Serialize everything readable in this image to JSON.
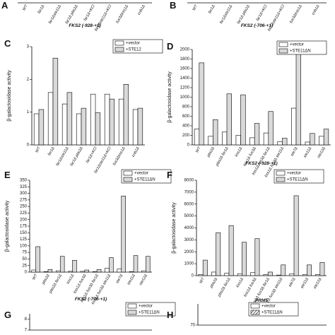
{
  "chart_data": [
    {
      "type": "bar",
      "letter": "A",
      "categories": [
        "WT",
        "far1Δ",
        "far1Δste11Δ",
        "far1Δ pbs2Δ",
        "far1Δ+KCl",
        "far1Δste11Δ+KCl",
        "fus3Δkss1Δ",
        "cnb1Δ"
      ],
      "xlabel": "FKS2 (-928-+1)"
    },
    {
      "type": "bar",
      "letter": "B",
      "categories": [
        "WT",
        "far1Δ",
        "far1Δste11Δ",
        "far1Δ pbs2Δ",
        "far1Δ+KCl",
        "far1Δste11Δ+KCl",
        "fus3Δkss1Δ",
        "cnb1Δ"
      ],
      "xlabel": "FKS2 (-706-+1)"
    },
    {
      "type": "bar",
      "letter": "C",
      "ylabel": "β-galactosidase activity",
      "categories": [
        "WT",
        "far1Δ",
        "far1Δste11Δ",
        "far1Δ pbs2Δ",
        "far1Δ+KCl",
        "far1Δste11Δ+KCl",
        "fus3Δkss1Δ",
        "cnb1Δ"
      ],
      "series": [
        {
          "name": "+vector",
          "color": "#ffffff",
          "values": [
            0.95,
            1.6,
            1.25,
            0.95,
            1.55,
            1.55,
            1.4,
            1.08
          ]
        },
        {
          "name": "+STE12",
          "color": "#d9d9d9",
          "values": [
            1.08,
            2.65,
            1.6,
            1.12,
            0.98,
            1.4,
            1.85,
            1.12
          ]
        }
      ],
      "ylim": [
        0,
        3
      ],
      "yticks": [
        0,
        1,
        2,
        3
      ]
    },
    {
      "type": "bar",
      "letter": "D",
      "ylabel": "β-galactosidase activity",
      "xlabel": "FKS2 (-928-+1)",
      "categories": [
        "WT",
        "pbs2Δ",
        "pbs2Δ far1Δ",
        "kss1Δ",
        "kss1Δ fus3Δ",
        "kss1Δ fus3Δ far1Δ",
        "kss1Δ fus3Δ ste11Δ",
        "ste7Δ",
        "ste11Δ",
        "ste12Δ"
      ],
      "series": [
        {
          "name": "+vector",
          "color": "#ffffff",
          "values": [
            330,
            180,
            270,
            200,
            150,
            250,
            70,
            770,
            60,
            180
          ]
        },
        {
          "name": "+STE11ΔN",
          "color": "#d9d9d9",
          "values": [
            1720,
            530,
            1070,
            1050,
            450,
            700,
            140,
            1920,
            240,
            330
          ]
        }
      ],
      "ylim": [
        0,
        2000
      ],
      "yticks": [
        0,
        200,
        400,
        600,
        800,
        1000,
        1200,
        1400,
        1600,
        1800,
        2000
      ]
    },
    {
      "type": "bar",
      "letter": "E",
      "ylabel": "β-galactosidase activity",
      "xlabel": "FKS2 (-706-+1)",
      "categories": [
        "WT",
        "pbs2Δ",
        "pbs2Δ far1Δ",
        "kss1Δ",
        "kss1Δ fus3Δ",
        "kss1Δ fus3Δ far1Δ",
        "kss1Δ fus3Δ ste11Δ",
        "ste7Δ",
        "ste11Δ",
        "ste12Δ"
      ],
      "series": [
        {
          "name": "+vector",
          "color": "#ffffff",
          "values": [
            8,
            2,
            5,
            3,
            3,
            2,
            15,
            12,
            2,
            5
          ]
        },
        {
          "name": "+STE11ΔN",
          "color": "#d9d9d9",
          "values": [
            97,
            10,
            60,
            45,
            8,
            10,
            55,
            290,
            63,
            60
          ]
        }
      ],
      "ylim": [
        0,
        350
      ],
      "yticks": [
        0,
        25,
        50,
        75,
        100,
        125,
        150,
        175,
        200,
        225,
        250,
        275,
        300,
        325,
        350
      ]
    },
    {
      "type": "bar",
      "letter": "F",
      "ylabel": "β-galactosidase activity",
      "xlabel": "PRM5",
      "categories": [
        "WT",
        "pbs2Δ",
        "pbs2Δ far1Δ",
        "kss1Δ",
        "kss1Δ fus3Δ",
        "kss1Δ fus3Δ far1Δ",
        "kss1Δ fus3Δ ste11Δ",
        "ste7Δ",
        "ste11Δ",
        "ste12Δ"
      ],
      "series": [
        {
          "name": "+vector",
          "color": "#ffffff",
          "values": [
            100,
            300,
            200,
            150,
            250,
            100,
            50,
            150,
            80,
            100
          ]
        },
        {
          "name": "+STE11ΔN",
          "color": "#d9d9d9",
          "values": [
            1300,
            3600,
            4200,
            2800,
            3100,
            300,
            900,
            6700,
            900,
            1100
          ]
        }
      ],
      "ylim": [
        0,
        8000
      ],
      "yticks": [
        0,
        1000,
        2000,
        3000,
        4000,
        5000,
        6000,
        7000,
        8000
      ]
    },
    {
      "type": "bar",
      "letter": "G",
      "series": [
        {
          "name": "+vector",
          "color": "#ffffff"
        },
        {
          "name": "+STE11ΔN",
          "color": "#d9d9d9"
        }
      ],
      "ylim": [
        7,
        8.5
      ],
      "yticks": [
        7,
        8
      ]
    },
    {
      "type": "bar",
      "letter": "H",
      "series": [
        {
          "name": "+vector",
          "color": "#ffffff"
        },
        {
          "name": "+STE11ΔN",
          "color": "hatch"
        }
      ],
      "ylim": [
        70,
        80
      ],
      "yticks": [
        70
      ]
    }
  ]
}
